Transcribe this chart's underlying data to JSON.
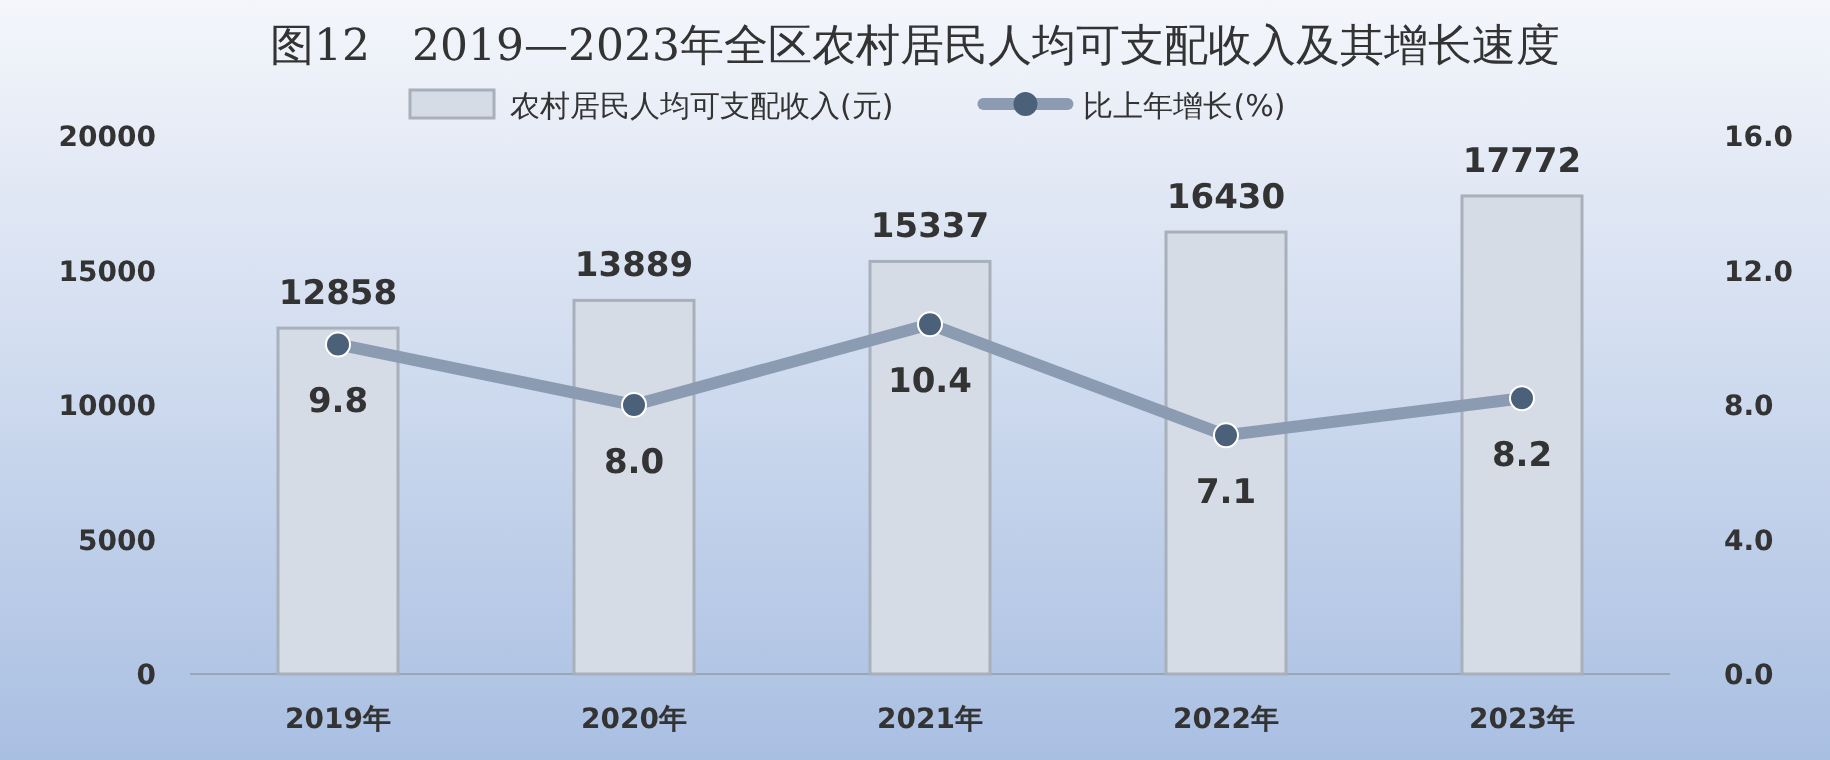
{
  "chart_data": {
    "type": "bar",
    "title": "图12   2019—2023年全区农村居民人均可支配收入及其增长速度",
    "categories": [
      "2019年",
      "2020年",
      "2021年",
      "2022年",
      "2023年"
    ],
    "series": [
      {
        "name": "农村居民人均可支配收入(元)",
        "color": "#d5dce6",
        "values": [
          12858,
          13889,
          15337,
          16430,
          17772
        ]
      },
      {
        "name": "比上年增长(%)",
        "type": "line",
        "axis": "y2",
        "color": "#8a9bb2",
        "values": [
          9.8,
          8.0,
          10.4,
          7.1,
          8.2
        ],
        "value_labels": [
          "9.8",
          "8.0",
          "10.4",
          "7.1",
          "8.2"
        ]
      }
    ],
    "ylim": [
      0,
      20000
    ],
    "yticks": [
      0,
      5000,
      10000,
      15000,
      20000
    ],
    "y2lim": [
      0,
      16
    ],
    "y2ticks": [
      {
        "value": 0,
        "label": "0.0"
      },
      {
        "value": 4,
        "label": "4.0"
      },
      {
        "value": 8,
        "label": "8.0"
      },
      {
        "value": 12,
        "label": "12.0"
      },
      {
        "value": 16,
        "label": "16.0"
      }
    ],
    "data_labels": true,
    "legend": "top",
    "marker": "circle",
    "grid": false
  }
}
